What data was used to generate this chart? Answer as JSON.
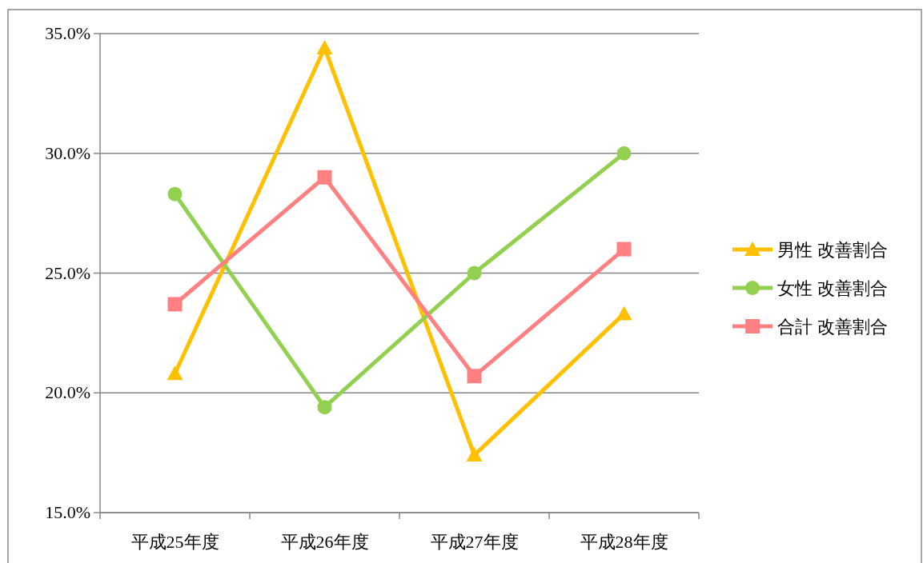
{
  "chart_data": {
    "type": "line",
    "categories": [
      "平成25年度",
      "平成26年度",
      "平成27年度",
      "平成28年度"
    ],
    "series": [
      {
        "name": "男性 改善割合",
        "color": "#ffc000",
        "marker": "triangle",
        "values": [
          20.8,
          34.4,
          17.4,
          23.3
        ]
      },
      {
        "name": "女性 改善割合",
        "color": "#92d050",
        "marker": "circle",
        "values": [
          28.3,
          19.4,
          25.0,
          30.0
        ]
      },
      {
        "name": "合計 改善割合",
        "color": "#ff8080",
        "marker": "square",
        "values": [
          23.7,
          29.0,
          20.7,
          26.0
        ]
      }
    ],
    "ylim": [
      15,
      35
    ],
    "yticks": [
      {
        "value": 15,
        "label": "15.0%"
      },
      {
        "value": 20,
        "label": "20.0%"
      },
      {
        "value": 25,
        "label": "25.0%"
      },
      {
        "value": 30,
        "label": "30.0%"
      },
      {
        "value": 35,
        "label": "35.0%"
      }
    ],
    "grid": "y",
    "legend": "right",
    "line_style": "solid"
  }
}
